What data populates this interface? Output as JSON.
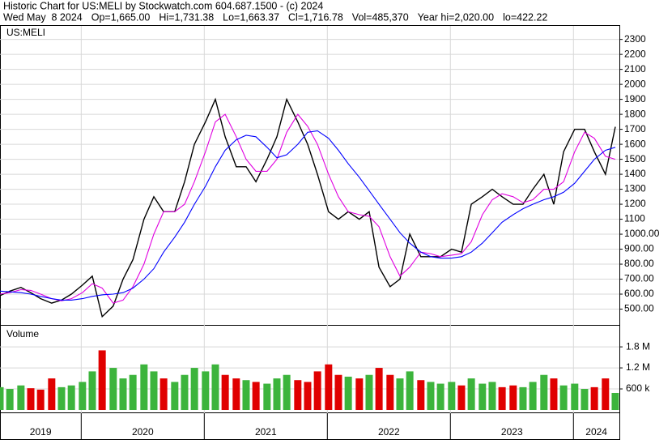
{
  "header": {
    "title": "Historic Chart for US:MELI by Stockwatch.com 604.687.1500 - (c) 2024",
    "quote": [
      "Wed May  8 2024",
      "Op=1,665.00",
      "Hi=1,731.38",
      "Lo=1,663.37",
      "Cl=1,716.78",
      "Vol=485,370",
      "Year hi=2,020.00",
      "lo=422.22"
    ]
  },
  "chart_data": {
    "type": "line",
    "title": "US:MELI",
    "x": [
      2019.34,
      2019.42,
      2019.51,
      2019.59,
      2019.67,
      2019.76,
      2019.84,
      2019.92,
      2020.01,
      2020.09,
      2020.17,
      2020.26,
      2020.34,
      2020.42,
      2020.51,
      2020.59,
      2020.67,
      2020.76,
      2020.84,
      2020.92,
      2021.01,
      2021.09,
      2021.17,
      2021.26,
      2021.34,
      2021.42,
      2021.51,
      2021.59,
      2021.67,
      2021.76,
      2021.84,
      2021.92,
      2022.01,
      2022.09,
      2022.17,
      2022.26,
      2022.34,
      2022.42,
      2022.51,
      2022.59,
      2022.67,
      2022.76,
      2022.84,
      2022.92,
      2023.01,
      2023.09,
      2023.17,
      2023.26,
      2023.34,
      2023.42,
      2023.51,
      2023.59,
      2023.67,
      2023.76,
      2023.84,
      2023.92,
      2024.01,
      2024.09,
      2024.17,
      2024.26,
      2024.34
    ],
    "series": [
      {
        "color": "#000000",
        "values": [
          590,
          620,
          645,
          610,
          570,
          540,
          560,
          600,
          660,
          720,
          450,
          520,
          700,
          830,
          1100,
          1250,
          1150,
          1150,
          1350,
          1600,
          1750,
          1900,
          1650,
          1450,
          1450,
          1350,
          1500,
          1650,
          1900,
          1750,
          1600,
          1400,
          1150,
          1100,
          1150,
          1100,
          1150,
          780,
          650,
          700,
          1000,
          850,
          850,
          850,
          900,
          880,
          1200,
          1250,
          1300,
          1250,
          1200,
          1200,
          1300,
          1400,
          1200,
          1550,
          1700,
          1700,
          1550,
          1400,
          1716.78
        ]
      },
      {
        "color": "#e000e0",
        "values": [
          600,
          610,
          630,
          625,
          600,
          570,
          555,
          570,
          610,
          670,
          640,
          540,
          560,
          650,
          800,
          1000,
          1150,
          1150,
          1200,
          1350,
          1550,
          1750,
          1800,
          1650,
          1500,
          1420,
          1420,
          1500,
          1680,
          1800,
          1720,
          1600,
          1400,
          1250,
          1150,
          1130,
          1120,
          1050,
          850,
          720,
          780,
          880,
          870,
          850,
          860,
          870,
          950,
          1130,
          1230,
          1270,
          1250,
          1210,
          1230,
          1300,
          1300,
          1350,
          1550,
          1680,
          1640,
          1520,
          1500
        ]
      },
      {
        "color": "#0000ff",
        "values": [
          620,
          615,
          610,
          600,
          585,
          570,
          560,
          560,
          570,
          585,
          595,
          600,
          610,
          640,
          700,
          770,
          880,
          980,
          1080,
          1200,
          1320,
          1450,
          1560,
          1630,
          1660,
          1650,
          1580,
          1510,
          1530,
          1600,
          1680,
          1690,
          1640,
          1560,
          1470,
          1380,
          1290,
          1200,
          1100,
          1010,
          940,
          880,
          850,
          840,
          840,
          850,
          880,
          940,
          1010,
          1080,
          1130,
          1170,
          1200,
          1230,
          1250,
          1280,
          1340,
          1420,
          1500,
          1560,
          1580
        ]
      }
    ],
    "xlim": [
      2019.34,
      2024.36
    ],
    "xticks": [
      2019,
      2020,
      2021,
      2022,
      2023,
      2024
    ],
    "ylim": [
      400,
      2390
    ],
    "yticks": [
      {
        "value": 500,
        "label": "500.00"
      },
      {
        "value": 600,
        "label": "600.00"
      },
      {
        "value": 700,
        "label": "700.00"
      },
      {
        "value": 800,
        "label": "800.00"
      },
      {
        "value": 900,
        "label": "900.00"
      },
      {
        "value": 1000,
        "label": "1000.00"
      },
      1100,
      1200,
      1300,
      1400,
      1500,
      1600,
      1700,
      1800,
      1900,
      2000,
      2100,
      2200,
      2300
    ],
    "grid": true,
    "volume": {
      "title": "Volume",
      "color_up": "#3cb43c",
      "color_down": "#e00000",
      "values": [
        650000,
        600000,
        700000,
        620000,
        580000,
        900000,
        650000,
        700000,
        800000,
        1100000,
        1700000,
        1200000,
        900000,
        1000000,
        1300000,
        1100000,
        900000,
        800000,
        1000000,
        1200000,
        1100000,
        1300000,
        1000000,
        900000,
        850000,
        800000,
        750000,
        900000,
        1000000,
        850000,
        800000,
        1100000,
        1300000,
        1000000,
        950000,
        900000,
        1000000,
        1200000,
        1000000,
        900000,
        1100000,
        850000,
        800000,
        750000,
        800000,
        700000,
        900000,
        750000,
        800000,
        650000,
        700000,
        650000,
        800000,
        1000000,
        900000,
        700000,
        750000,
        600000,
        650000,
        900000,
        485370
      ],
      "ylim": [
        0,
        2380000
      ],
      "yticks": [
        {
          "value": 600000,
          "label": "600 k"
        },
        {
          "value": 1200000,
          "label": "1.2 M"
        },
        {
          "value": 1800000,
          "label": "1.8 M"
        }
      ]
    }
  }
}
